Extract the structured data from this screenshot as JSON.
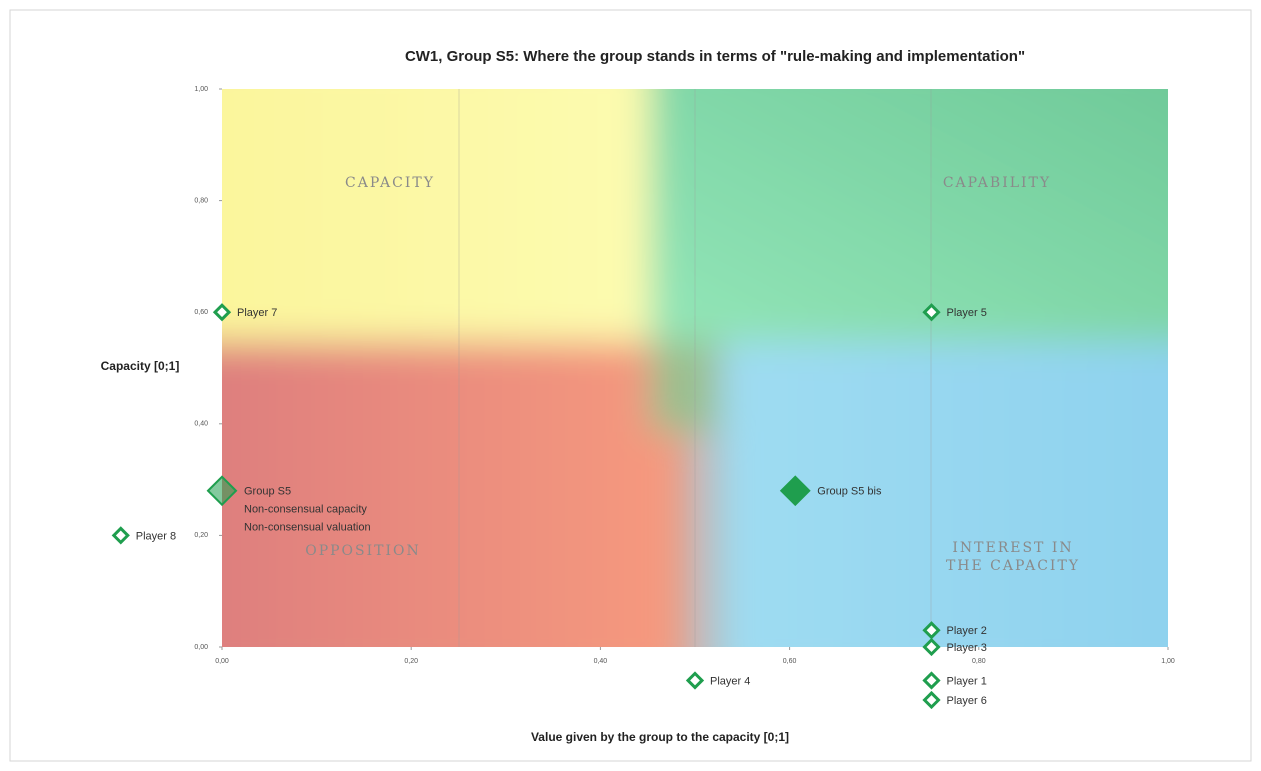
{
  "chart_data": {
    "type": "scatter",
    "title": "CW1, Group S5: Where the group stands in terms of \"rule-making and implementation\"",
    "xlabel": "Value given by the group to the capacity [0;1]",
    "ylabel": "Capacity [0;1]",
    "xlim": [
      0,
      1
    ],
    "ylim": [
      0,
      1
    ],
    "xticks": [
      {
        "value": 0,
        "label": "0,00"
      },
      {
        "value": 0.2,
        "label": "0,20"
      },
      {
        "value": 0.4,
        "label": "0,40"
      },
      {
        "value": 0.6,
        "label": "0,60"
      },
      {
        "value": 0.8,
        "label": "0,80"
      },
      {
        "value": 1,
        "label": "1,00"
      }
    ],
    "yticks": [
      {
        "value": 0,
        "label": "0,00"
      },
      {
        "value": 0.2,
        "label": "0,20"
      },
      {
        "value": 0.4,
        "label": "0,40"
      },
      {
        "value": 0.6,
        "label": "0,60"
      },
      {
        "value": 0.8,
        "label": "0,80"
      },
      {
        "value": 1,
        "label": "1,00"
      }
    ],
    "quadrants": [
      "CAPACITY",
      "CAPABILITY",
      "OPPOSITION",
      [
        "INTEREST IN",
        "THE CAPACITY"
      ]
    ],
    "color": "#1f9e4e",
    "players": [
      {
        "label": "Player 7",
        "x": 0,
        "y": 0.6
      },
      {
        "label": "Player 5",
        "x": 0.75,
        "y": 0.6
      },
      {
        "label": "Player 8",
        "x": -0.107,
        "y": 0.2
      },
      {
        "label": "Player 2",
        "x": 0.75,
        "y": 0.03
      },
      {
        "label": "Player 3",
        "x": 0.75,
        "y": 0
      },
      {
        "label": "Player 4",
        "x": 0.5,
        "y": -0.06
      },
      {
        "label": "Player 1",
        "x": 0.75,
        "y": -0.06
      },
      {
        "label": "Player 6",
        "x": 0.75,
        "y": -0.095
      }
    ],
    "groups": [
      {
        "label": [
          "Group S5",
          "Non-consensual capacity",
          "Non-consensual valuation"
        ],
        "x": 0,
        "y": 0.28
      },
      {
        "label": [
          "Group S5 bis"
        ],
        "x": 0.606,
        "y": 0.28
      }
    ]
  }
}
